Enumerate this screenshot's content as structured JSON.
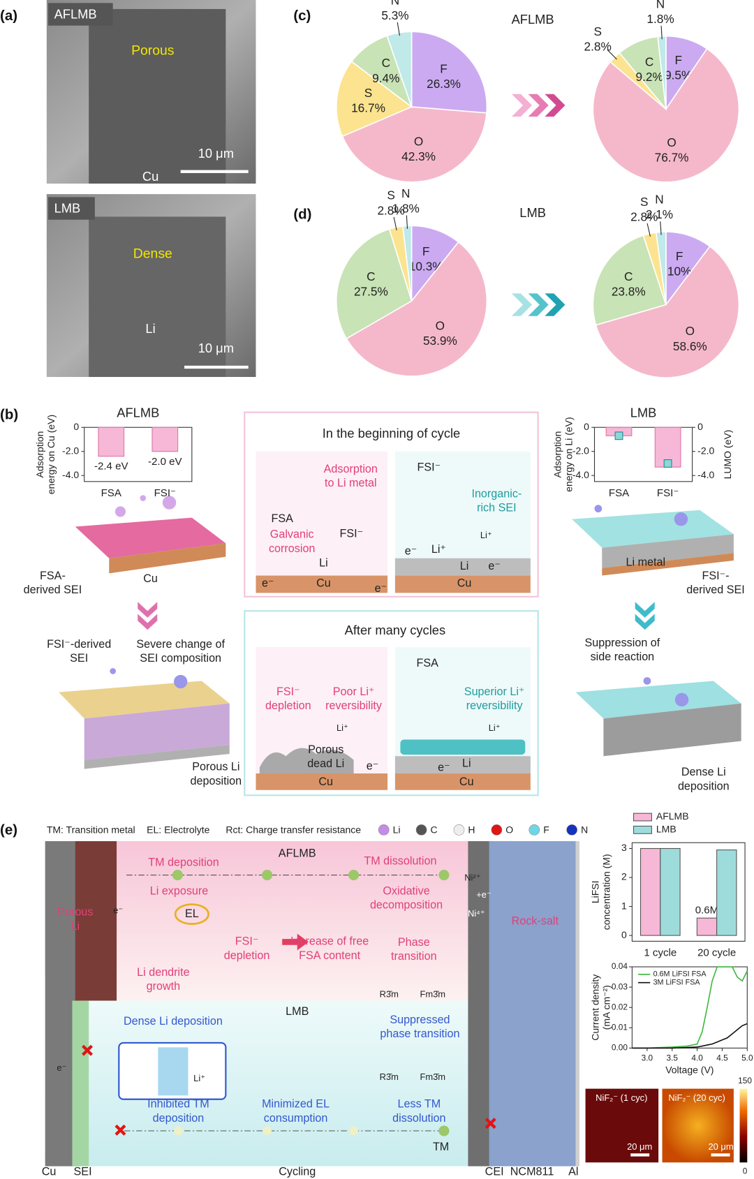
{
  "panel_a": {
    "label": "(a)",
    "top": {
      "tag": "AFLMB",
      "feature": "Porous",
      "scale": "10 μm",
      "substrate": "Cu"
    },
    "bottom": {
      "tag": "LMB",
      "feature": "Dense",
      "scale": "10 μm",
      "substrate": "Li"
    }
  },
  "panel_c": {
    "label": "(c)",
    "title": "AFLMB"
  },
  "panel_d": {
    "label": "(d)",
    "title": "LMB"
  },
  "panel_b": {
    "label": "(b)",
    "left_top": {
      "sei": [
        "FSA-",
        "derived SEI"
      ],
      "substrate": "Cu"
    },
    "right_top": {
      "substrate": "Li metal",
      "sei": [
        "FSI⁻-",
        "derived SEI"
      ]
    },
    "beginning": {
      "title": "In the beginning of cycle",
      "left": {
        "molecule": "FSA",
        "adsorption": [
          "Adsorption",
          "to Li metal"
        ],
        "anion": "FSI⁻",
        "corrosion": [
          "Galvanic",
          "corrosion"
        ],
        "metal": "Li",
        "substrate": "Cu",
        "electron_left": "e⁻",
        "electron_right": "e⁻"
      },
      "right": {
        "anion": "FSI⁻",
        "sei": [
          "Inorganic-",
          "rich SEI"
        ],
        "electron_left": "e⁻",
        "ion": "Li⁺",
        "ion_small": "Li⁺",
        "metal": "Li",
        "electron_right": "e⁻",
        "substrate": "Cu"
      }
    },
    "left_bottom": {
      "sei": [
        "FSI⁻-derived",
        "SEI"
      ],
      "change": [
        "Severe change of",
        "SEI composition"
      ],
      "deposition": [
        "Porous Li",
        "deposition"
      ]
    },
    "right_bottom": {
      "suppression": [
        "Suppression of",
        "side reaction"
      ],
      "deposition": [
        "Dense Li",
        "deposition"
      ]
    },
    "after": {
      "title": "After many cycles",
      "left": {
        "depletion": [
          "FSI⁻",
          "depletion"
        ],
        "reversibility": [
          "Poor Li⁺",
          "reversibility"
        ],
        "ion": "Li⁺",
        "dead": [
          "Porous",
          "dead Li"
        ],
        "electron": "e⁻",
        "substrate": "Cu"
      },
      "right": {
        "molecule": "FSA",
        "reversibility": [
          "Superior Li⁺",
          "reversibility"
        ],
        "ion": "Li⁺",
        "electron": "e⁻",
        "metal": "Li",
        "substrate": "Cu"
      }
    }
  },
  "panel_e": {
    "label": "(e)",
    "legend": {
      "tm": "TM: Transition metal",
      "el": "EL: Electrolyte",
      "rct": "Rct: Charge transfer resistance",
      "atoms": [
        {
          "symbol": "Li",
          "color": "#c58be6"
        },
        {
          "symbol": "C",
          "color": "#555555"
        },
        {
          "symbol": "H",
          "color": "#eeeeee"
        },
        {
          "symbol": "O",
          "color": "#e01515"
        },
        {
          "symbol": "F",
          "color": "#6fd6e6"
        },
        {
          "symbol": "N",
          "color": "#1533c0"
        }
      ]
    },
    "aflmb": {
      "title": "AFLMB",
      "tm_deposition": "TM deposition",
      "tm_dissolution": "TM dissolution",
      "li_exposure": "Li exposure",
      "oxidative": [
        "Oxidative",
        "decomposition"
      ],
      "porous_li": [
        "Porous",
        "Li"
      ],
      "electron": "e⁻",
      "el": "EL",
      "depletion": [
        "FSI⁻",
        "depletion"
      ],
      "increase": [
        "Increase of free",
        "FSA content"
      ],
      "phase": [
        "Phase",
        "transition"
      ],
      "rock_salt": "Rock-salt",
      "ni2": "Ni²⁺",
      "plus_e": "+e⁻",
      "ni4": "Ni⁴⁺",
      "dendrite": [
        "Li dendrite",
        "growth"
      ],
      "r3m": "R3̄m",
      "fm3m": "Fm3̄m"
    },
    "lmb": {
      "title": "LMB",
      "dense": "Dense Li deposition",
      "ion": "Li⁺",
      "suppressed": [
        "Suppressed",
        "phase transition"
      ],
      "r3m": "R3̄m",
      "fm3m": "Fm3̄m",
      "electron": "e⁻",
      "inhibited": [
        "Inhibited TM",
        "deposition"
      ],
      "minimized": [
        "Minimized EL",
        "consumption"
      ],
      "less": [
        "Less TM",
        "dissolution"
      ],
      "tm": "TM"
    },
    "axis": {
      "cu": "Cu",
      "sei": "SEI",
      "cycling": "Cycling",
      "cei": "CEI",
      "ncm": "NCM811",
      "al": "Al"
    },
    "maps": {
      "left": "NiF₂⁻ (1 cyc)",
      "right": "NiF₂⁻ (20 cyc)",
      "scale_left": "20 μm",
      "scale_right": "20 μm",
      "colorbar": [
        0,
        150
      ]
    }
  },
  "chart_data": [
    {
      "type": "pie",
      "categories": [
        "F",
        "O",
        "S",
        "C",
        "N"
      ],
      "values": [
        26.3,
        42.3,
        16.7,
        9.4,
        5.3
      ],
      "value_labels": [
        "26.3%",
        "42.3%",
        "16.7%",
        "9.4%",
        "5.3%"
      ],
      "colors": [
        "#cbaaf2",
        "#f5b8cb",
        "#fce38f",
        "#c8e3b5",
        "#c0e9e9"
      ]
    },
    {
      "type": "pie",
      "categories": [
        "F",
        "O",
        "S",
        "C",
        "N"
      ],
      "values": [
        9.5,
        76.7,
        2.8,
        9.2,
        1.8
      ],
      "value_labels": [
        "9.5%",
        "76.7%",
        "2.8%",
        "9.2%",
        "1.8%"
      ],
      "colors": [
        "#cbaaf2",
        "#f5b8cb",
        "#fce38f",
        "#c8e3b5",
        "#c0e9e9"
      ]
    },
    {
      "type": "pie",
      "categories": [
        "F",
        "O",
        "C",
        "S",
        "N"
      ],
      "values": [
        10.3,
        53.9,
        27.5,
        2.8,
        1.8
      ],
      "value_labels": [
        "10.3%",
        "53.9%",
        "27.5%",
        "2.8%",
        "1.8%"
      ],
      "colors": [
        "#cbaaf2",
        "#f5b8cb",
        "#c8e3b5",
        "#fce38f",
        "#c0e9e9"
      ]
    },
    {
      "type": "pie",
      "categories": [
        "F",
        "O",
        "C",
        "S",
        "N"
      ],
      "values": [
        10,
        58.6,
        23.8,
        2.8,
        2.1
      ],
      "value_labels": [
        "10%",
        "58.6%",
        "23.8%",
        "2.8%",
        "2.1%"
      ],
      "colors": [
        "#cbaaf2",
        "#f5b8cb",
        "#c8e3b5",
        "#fce38f",
        "#c0e9e9"
      ]
    },
    {
      "type": "bar",
      "title": "AFLMB",
      "ylabel": [
        "Adsorption",
        "energy on Cu (eV)"
      ],
      "categories": [
        "FSA",
        "FSI⁻"
      ],
      "values": [
        -2.4,
        -2.0
      ],
      "value_labels": [
        "-2.4 eV",
        "-2.0 eV"
      ],
      "color": "#f6b8d6",
      "edgecolor": "#e070a8",
      "ylim": [
        -4.5,
        0
      ],
      "yticks": [
        0,
        {
          "value": -2,
          "label": "-2.0"
        },
        {
          "value": -4,
          "label": "-4.0"
        }
      ]
    },
    {
      "type": "bar",
      "title": "LMB",
      "ylabel": [
        "Adsorption",
        "energy on Li (eV)"
      ],
      "y2label": "LUMO (eV)",
      "categories": [
        "FSA",
        "FSI⁻"
      ],
      "series": [
        {
          "color": "#f6b8d6",
          "values": [
            -0.7,
            -3.3
          ]
        },
        {
          "axis": "y2",
          "color": "#8fd6d6",
          "values": [
            -0.7,
            -3.0
          ]
        }
      ],
      "edgecolor": "#e070a8",
      "ylim": [
        -4.5,
        0
      ],
      "yticks": [
        0,
        {
          "value": -2,
          "label": "-2.0"
        },
        {
          "value": -4,
          "label": "-4.0"
        }
      ],
      "y2lim": [
        -4.5,
        0
      ],
      "y2ticks": [
        0,
        {
          "value": -2,
          "label": "-2.0"
        },
        {
          "value": -4,
          "label": "-4.0"
        }
      ]
    },
    {
      "type": "bar",
      "ylabel": [
        "LiFSI",
        "concentration (M)"
      ],
      "categories": [
        "1 cycle",
        "20 cycle"
      ],
      "series": [
        {
          "name": "AFLMB",
          "color": "#f6b8d6",
          "values": [
            3.0,
            0.6
          ],
          "value_labels": [
            null,
            "0.6M"
          ]
        },
        {
          "name": "LMB",
          "color": "#9edcdc",
          "values": [
            3.0,
            2.95
          ]
        }
      ],
      "edgecolor": "#555555",
      "ylim": [
        -0.2,
        3.2
      ],
      "yticks": [
        0,
        1,
        2,
        3
      ],
      "legend": "top"
    },
    {
      "type": "line",
      "xlabel": "Voltage (V)",
      "ylabel": [
        "Current density",
        "(mA cm⁻²)"
      ],
      "x": [
        2.7,
        3.0,
        3.5,
        3.8,
        4.0,
        4.1,
        4.2,
        4.3,
        4.4,
        4.5,
        4.6,
        4.7,
        4.8,
        4.9,
        5.0
      ],
      "series": [
        {
          "name": "0.6M LiFSI FSA",
          "color": "#3cb83c",
          "values": [
            0,
            0,
            0.0005,
            0.001,
            0.002,
            0.008,
            0.02,
            0.033,
            0.04,
            0.04,
            0.04,
            0.04,
            0.035,
            0.033,
            0.038
          ]
        },
        {
          "name": "3M LiFSI FSA",
          "color": "#111111",
          "values": [
            0,
            0,
            0,
            0.0003,
            0.0005,
            0.001,
            0.0015,
            0.002,
            0.003,
            0.004,
            0.005,
            0.007,
            0.009,
            0.011,
            0.012
          ]
        }
      ],
      "xlim": [
        2.7,
        5.0
      ],
      "xticks": [
        {
          "value": 3,
          "label": "3.0"
        },
        3.5,
        {
          "value": 4,
          "label": "4.0"
        },
        4.5,
        {
          "value": 5,
          "label": "5.0"
        }
      ],
      "ylim": [
        0,
        0.04
      ],
      "yticks": [
        {
          "value": 0,
          "label": "0.00"
        },
        0.01,
        0.02,
        0.03,
        0.04
      ],
      "legend": "upper left"
    }
  ]
}
